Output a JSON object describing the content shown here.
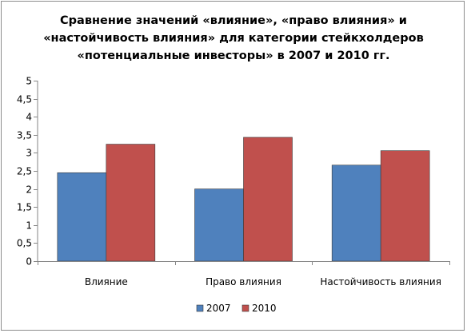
{
  "chart_data": {
    "type": "bar",
    "title_lines": [
      "Сравнение значений «влияние», «право влияния» и",
      "«настойчивость влияния» для категории стейкхолдеров",
      "«потенциальные инвесторы» в 2007 и 2010 гг."
    ],
    "categories": [
      "Влияние",
      "Право влияния",
      "Настойчивость влияния"
    ],
    "series": [
      {
        "name": "2007",
        "color": "#4f81bd",
        "values": [
          2.45,
          2.0,
          2.66
        ]
      },
      {
        "name": "2010",
        "color": "#c0504d",
        "values": [
          3.24,
          3.43,
          3.06
        ]
      }
    ],
    "ylim": [
      0,
      5
    ],
    "ytick_labels": [
      "0",
      "0,5",
      "1",
      "1,5",
      "2",
      "2,5",
      "3",
      "3,5",
      "4",
      "4,5",
      "5"
    ],
    "grid": false,
    "legend_position": "bottom"
  }
}
